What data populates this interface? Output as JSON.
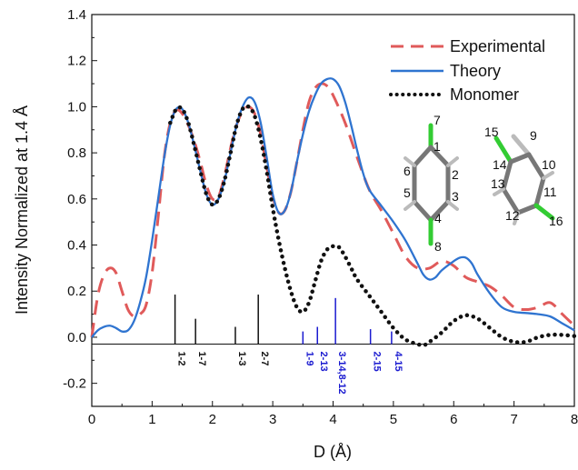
{
  "chart_data": {
    "type": "line",
    "xlabel": "D (Å)",
    "ylabel": "Intensity Normalized at 1.4 Å",
    "xlim": [
      0,
      8
    ],
    "ylim": [
      -0.3,
      1.4
    ],
    "x_ticks": [
      "0",
      "1",
      "2",
      "3",
      "4",
      "5",
      "6",
      "7",
      "8"
    ],
    "y_ticks": [
      "-0.2",
      "0.0",
      "0.2",
      "0.4",
      "0.6",
      "0.8",
      "1.0",
      "1.2",
      "1.4"
    ],
    "legend_position": "top-right",
    "baseline_y": -0.03,
    "series": [
      {
        "name": "Experimental",
        "color": "#e05a5a",
        "style": "dashed",
        "points": [
          [
            0,
            0.0
          ],
          [
            0.1,
            0.18
          ],
          [
            0.2,
            0.27
          ],
          [
            0.3,
            0.3
          ],
          [
            0.4,
            0.28
          ],
          [
            0.5,
            0.2
          ],
          [
            0.6,
            0.12
          ],
          [
            0.7,
            0.09
          ],
          [
            0.8,
            0.1
          ],
          [
            0.9,
            0.14
          ],
          [
            1.0,
            0.28
          ],
          [
            1.1,
            0.52
          ],
          [
            1.2,
            0.78
          ],
          [
            1.3,
            0.93
          ],
          [
            1.4,
            0.985
          ],
          [
            1.5,
            0.97
          ],
          [
            1.6,
            0.92
          ],
          [
            1.7,
            0.85
          ],
          [
            1.8,
            0.76
          ],
          [
            1.9,
            0.66
          ],
          [
            2.0,
            0.6
          ],
          [
            2.1,
            0.61
          ],
          [
            2.2,
            0.7
          ],
          [
            2.3,
            0.82
          ],
          [
            2.4,
            0.92
          ],
          [
            2.5,
            0.98
          ],
          [
            2.6,
            1.0
          ],
          [
            2.7,
            0.97
          ],
          [
            2.8,
            0.88
          ],
          [
            2.9,
            0.74
          ],
          [
            3.0,
            0.61
          ],
          [
            3.1,
            0.54
          ],
          [
            3.2,
            0.55
          ],
          [
            3.3,
            0.63
          ],
          [
            3.4,
            0.76
          ],
          [
            3.5,
            0.9
          ],
          [
            3.6,
            1.02
          ],
          [
            3.7,
            1.08
          ],
          [
            3.8,
            1.1
          ],
          [
            3.9,
            1.09
          ],
          [
            4.0,
            1.05
          ],
          [
            4.2,
            0.93
          ],
          [
            4.4,
            0.78
          ],
          [
            4.6,
            0.64
          ],
          [
            4.8,
            0.55
          ],
          [
            5.0,
            0.45
          ],
          [
            5.2,
            0.35
          ],
          [
            5.4,
            0.3
          ],
          [
            5.6,
            0.3
          ],
          [
            5.8,
            0.33
          ],
          [
            6.0,
            0.31
          ],
          [
            6.2,
            0.26
          ],
          [
            6.4,
            0.24
          ],
          [
            6.6,
            0.22
          ],
          [
            6.8,
            0.18
          ],
          [
            7.0,
            0.13
          ],
          [
            7.2,
            0.12
          ],
          [
            7.4,
            0.13
          ],
          [
            7.6,
            0.15
          ],
          [
            7.8,
            0.1
          ],
          [
            8.0,
            0.05
          ]
        ]
      },
      {
        "name": "Theory",
        "color": "#2f74d0",
        "style": "solid",
        "points": [
          [
            0,
            0.0
          ],
          [
            0.1,
            0.03
          ],
          [
            0.2,
            0.045
          ],
          [
            0.3,
            0.05
          ],
          [
            0.4,
            0.04
          ],
          [
            0.5,
            0.025
          ],
          [
            0.6,
            0.03
          ],
          [
            0.7,
            0.07
          ],
          [
            0.8,
            0.15
          ],
          [
            0.9,
            0.26
          ],
          [
            1.0,
            0.42
          ],
          [
            1.1,
            0.6
          ],
          [
            1.2,
            0.78
          ],
          [
            1.3,
            0.92
          ],
          [
            1.4,
            0.99
          ],
          [
            1.5,
            0.99
          ],
          [
            1.6,
            0.93
          ],
          [
            1.7,
            0.83
          ],
          [
            1.8,
            0.72
          ],
          [
            1.9,
            0.62
          ],
          [
            2.0,
            0.575
          ],
          [
            2.1,
            0.6
          ],
          [
            2.2,
            0.68
          ],
          [
            2.3,
            0.8
          ],
          [
            2.4,
            0.92
          ],
          [
            2.5,
            1.0
          ],
          [
            2.6,
            1.04
          ],
          [
            2.7,
            1.02
          ],
          [
            2.8,
            0.93
          ],
          [
            2.9,
            0.78
          ],
          [
            3.0,
            0.62
          ],
          [
            3.1,
            0.54
          ],
          [
            3.2,
            0.55
          ],
          [
            3.3,
            0.63
          ],
          [
            3.4,
            0.76
          ],
          [
            3.5,
            0.88
          ],
          [
            3.6,
            0.98
          ],
          [
            3.7,
            1.05
          ],
          [
            3.8,
            1.1
          ],
          [
            3.9,
            1.12
          ],
          [
            4.0,
            1.12
          ],
          [
            4.1,
            1.09
          ],
          [
            4.2,
            1.02
          ],
          [
            4.3,
            0.92
          ],
          [
            4.4,
            0.81
          ],
          [
            4.5,
            0.71
          ],
          [
            4.6,
            0.64
          ],
          [
            4.8,
            0.57
          ],
          [
            5.0,
            0.5
          ],
          [
            5.2,
            0.42
          ],
          [
            5.4,
            0.32
          ],
          [
            5.5,
            0.27
          ],
          [
            5.6,
            0.25
          ],
          [
            5.7,
            0.26
          ],
          [
            5.8,
            0.29
          ],
          [
            6.0,
            0.33
          ],
          [
            6.1,
            0.345
          ],
          [
            6.2,
            0.345
          ],
          [
            6.3,
            0.32
          ],
          [
            6.4,
            0.27
          ],
          [
            6.6,
            0.19
          ],
          [
            6.8,
            0.13
          ],
          [
            7.0,
            0.11
          ],
          [
            7.2,
            0.105
          ],
          [
            7.4,
            0.1
          ],
          [
            7.6,
            0.09
          ],
          [
            7.8,
            0.06
          ],
          [
            8.0,
            0.03
          ]
        ]
      },
      {
        "name": "Monomer",
        "color": "#111111",
        "style": "dotted",
        "points": [
          [
            1.3,
            0.93
          ],
          [
            1.4,
            0.99
          ],
          [
            1.5,
            0.99
          ],
          [
            1.6,
            0.93
          ],
          [
            1.7,
            0.83
          ],
          [
            1.8,
            0.72
          ],
          [
            1.9,
            0.62
          ],
          [
            2.0,
            0.575
          ],
          [
            2.1,
            0.6
          ],
          [
            2.2,
            0.68
          ],
          [
            2.3,
            0.8
          ],
          [
            2.4,
            0.92
          ],
          [
            2.5,
            0.99
          ],
          [
            2.6,
            1.0
          ],
          [
            2.7,
            0.96
          ],
          [
            2.8,
            0.86
          ],
          [
            2.9,
            0.72
          ],
          [
            3.0,
            0.56
          ],
          [
            3.1,
            0.42
          ],
          [
            3.2,
            0.3
          ],
          [
            3.3,
            0.2
          ],
          [
            3.4,
            0.13
          ],
          [
            3.5,
            0.11
          ],
          [
            3.6,
            0.15
          ],
          [
            3.7,
            0.24
          ],
          [
            3.8,
            0.33
          ],
          [
            3.9,
            0.38
          ],
          [
            4.0,
            0.395
          ],
          [
            4.1,
            0.39
          ],
          [
            4.2,
            0.35
          ],
          [
            4.3,
            0.3
          ],
          [
            4.4,
            0.25
          ],
          [
            4.6,
            0.18
          ],
          [
            4.8,
            0.11
          ],
          [
            5.0,
            0.04
          ],
          [
            5.2,
            -0.01
          ],
          [
            5.4,
            -0.03
          ],
          [
            5.5,
            -0.035
          ],
          [
            5.6,
            -0.02
          ],
          [
            5.8,
            0.02
          ],
          [
            6.0,
            0.07
          ],
          [
            6.2,
            0.095
          ],
          [
            6.4,
            0.08
          ],
          [
            6.6,
            0.04
          ],
          [
            6.8,
            0.0
          ],
          [
            7.0,
            -0.02
          ],
          [
            7.2,
            -0.02
          ],
          [
            7.4,
            0.0
          ],
          [
            7.6,
            0.01
          ],
          [
            7.8,
            0.01
          ],
          [
            8.0,
            0.005
          ]
        ]
      }
    ],
    "sticks": [
      {
        "x": 1.38,
        "height": 0.215,
        "label": "1-2",
        "color": "#111111"
      },
      {
        "x": 1.72,
        "height": 0.11,
        "label": "1-7",
        "color": "#111111"
      },
      {
        "x": 2.38,
        "height": 0.075,
        "label": "1-3",
        "color": "#111111"
      },
      {
        "x": 2.76,
        "height": 0.215,
        "label": "2-7",
        "color": "#111111"
      },
      {
        "x": 3.5,
        "height": 0.055,
        "label": "1-9",
        "color": "#1a1ad0"
      },
      {
        "x": 3.74,
        "height": 0.075,
        "label": "2-13",
        "color": "#1a1ad0"
      },
      {
        "x": 4.04,
        "height": 0.2,
        "label": "3-14,8-12",
        "color": "#1a1ad0"
      },
      {
        "x": 4.62,
        "height": 0.065,
        "label": "2-15",
        "color": "#1a1ad0"
      },
      {
        "x": 4.97,
        "height": 0.055,
        "label": "4-15",
        "color": "#1a1ad0"
      }
    ],
    "molecule_labels_left": [
      "7",
      "1",
      "6",
      "2",
      "5",
      "3",
      "4",
      "8"
    ],
    "molecule_labels_right": [
      "15",
      "9",
      "14",
      "10",
      "13",
      "11",
      "12",
      "16"
    ]
  }
}
